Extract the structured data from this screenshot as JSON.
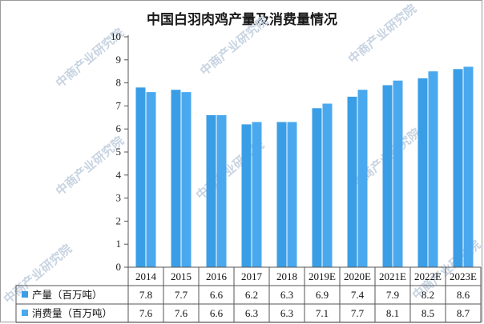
{
  "chart_data": {
    "type": "bar",
    "title": "中国白羽肉鸡产量及消费量情况",
    "categories": [
      "2014",
      "2015",
      "2016",
      "2017",
      "2018",
      "2019E",
      "2020E",
      "2021E",
      "2022E",
      "2023E"
    ],
    "series": [
      {
        "name": "产量（百万吨）",
        "values": [
          7.8,
          7.7,
          6.6,
          6.2,
          6.3,
          6.9,
          7.4,
          7.9,
          8.2,
          8.6
        ],
        "color": "#3a9ee6"
      },
      {
        "name": "消费量（百万吨）",
        "values": [
          7.6,
          7.6,
          6.6,
          6.3,
          6.3,
          7.1,
          7.7,
          8.1,
          8.5,
          8.7
        ],
        "color": "#4aa8ee"
      }
    ],
    "ylim": [
      0,
      10
    ],
    "yticks": [
      0,
      1,
      2,
      3,
      4,
      5,
      6,
      7,
      8,
      9,
      10
    ],
    "xlabel": "",
    "ylabel": "",
    "grid": false,
    "legend": "data-table-below",
    "watermark": "中商产业研究院"
  }
}
